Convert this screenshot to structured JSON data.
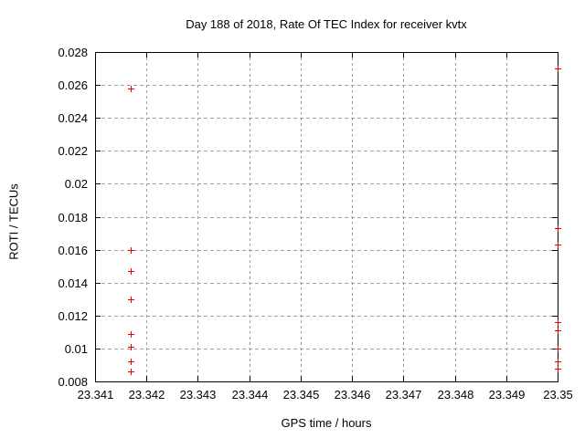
{
  "colors": {
    "background": "#ffffff",
    "border": "#000000",
    "grid": "#a0a0a0",
    "marker": "#ee0000",
    "text": "#000000"
  },
  "chart_data": {
    "type": "scatter",
    "title": "Day 188 of 2018, Rate Of TEC Index for receiver kvtx",
    "xlabel": "GPS time / hours",
    "ylabel": "ROTI / TECUs",
    "xlim": [
      23.341,
      23.35
    ],
    "ylim": [
      0.008,
      0.028
    ],
    "x_ticks": [
      23.341,
      23.342,
      23.343,
      23.344,
      23.345,
      23.346,
      23.347,
      23.348,
      23.349,
      23.35
    ],
    "x_tick_labels": [
      "23.341",
      "23.342",
      "23.343",
      "23.344",
      "23.345",
      "23.346",
      "23.347",
      "23.348",
      "23.349",
      "23.35"
    ],
    "y_ticks": [
      0.008,
      0.01,
      0.012,
      0.014,
      0.016,
      0.018,
      0.02,
      0.022,
      0.024,
      0.026,
      0.028
    ],
    "y_tick_labels": [
      "0.008",
      "0.01",
      "0.012",
      "0.014",
      "0.016",
      "0.018",
      "0.02",
      "0.022",
      "0.024",
      "0.026",
      "0.028"
    ],
    "grid": true,
    "legend": "none",
    "marker": {
      "shape": "plus",
      "color": "#ee0000",
      "size": 7
    },
    "series": [
      {
        "name": "ROTI",
        "points": [
          {
            "x": 23.3417,
            "y": 0.0258
          },
          {
            "x": 23.3417,
            "y": 0.016
          },
          {
            "x": 23.3417,
            "y": 0.0147
          },
          {
            "x": 23.3417,
            "y": 0.013
          },
          {
            "x": 23.3417,
            "y": 0.0109
          },
          {
            "x": 23.3417,
            "y": 0.0101
          },
          {
            "x": 23.3417,
            "y": 0.0092
          },
          {
            "x": 23.3417,
            "y": 0.0086
          },
          {
            "x": 23.35,
            "y": 0.027
          },
          {
            "x": 23.35,
            "y": 0.0173
          },
          {
            "x": 23.35,
            "y": 0.0163
          },
          {
            "x": 23.35,
            "y": 0.0116
          },
          {
            "x": 23.35,
            "y": 0.0111
          },
          {
            "x": 23.35,
            "y": 0.01
          },
          {
            "x": 23.35,
            "y": 0.0092
          },
          {
            "x": 23.35,
            "y": 0.0088
          }
        ]
      }
    ]
  }
}
